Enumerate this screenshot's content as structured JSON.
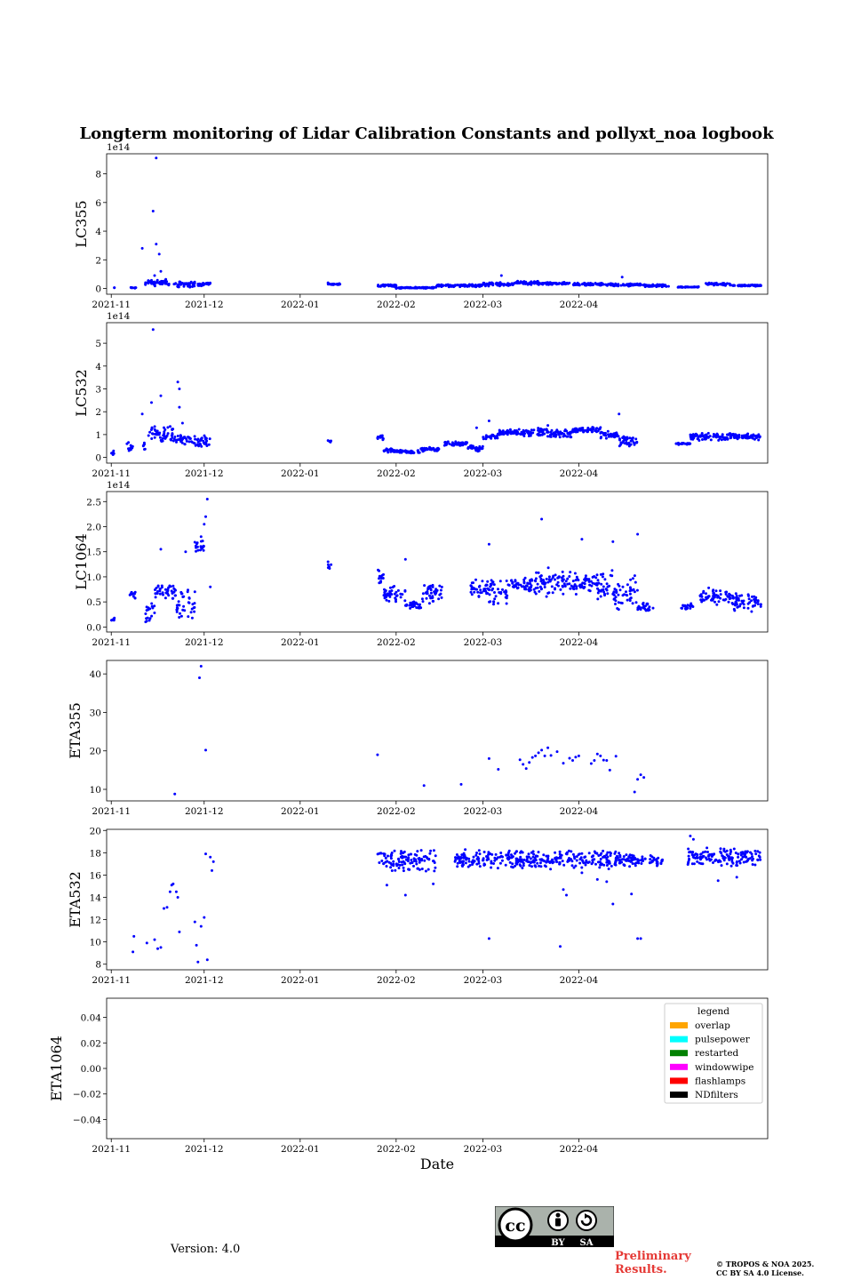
{
  "page": {
    "title": "Longterm monitoring of Lidar Calibration Constants and pollyxt_noa logbook",
    "version": "Version: 4.0",
    "preliminary_line1": "Preliminary",
    "preliminary_line2": "Results.",
    "copyright_line1": "© TROPOS & NOA 2025.",
    "copyright_line2": "CC BY SA 4.0 License.",
    "license_badge": {
      "cc": "cc",
      "by": "BY",
      "sa": "SA"
    }
  },
  "chart_data": [
    {
      "type": "scatter",
      "ylabel": "LC355",
      "xlabel": "",
      "offset_text": "1e14",
      "x_ticks": [
        "2021-11",
        "2021-12",
        "2022-01",
        "2022-02",
        "2022-03",
        "2022-04"
      ],
      "ylim": [
        -0.4,
        9.4
      ],
      "y_ticks": [
        0,
        2,
        4,
        6,
        8
      ],
      "y_tick_labels": [
        "0",
        "2",
        "4",
        "6",
        "8"
      ],
      "color": "#0000ff",
      "segments": [
        [
          1,
          1,
          0.05,
          0.02
        ],
        [
          6,
          8,
          0.05,
          0.04
        ],
        [
          11,
          19,
          0.4,
          0.3
        ],
        [
          20,
          27,
          0.3,
          0.25
        ],
        [
          28,
          32,
          0.3,
          0.15
        ],
        [
          70,
          74,
          0.3,
          0.05
        ],
        [
          86,
          92,
          0.2,
          0.1
        ],
        [
          92,
          105,
          0.05,
          0.05
        ],
        [
          105,
          120,
          0.2,
          0.1
        ],
        [
          120,
          130,
          0.3,
          0.15
        ],
        [
          130,
          138,
          0.4,
          0.15
        ],
        [
          138,
          148,
          0.35,
          0.1
        ],
        [
          149,
          162,
          0.3,
          0.1
        ],
        [
          162,
          172,
          0.25,
          0.1
        ],
        [
          172,
          180,
          0.2,
          0.1
        ],
        [
          183,
          190,
          0.1,
          0.03
        ],
        [
          192,
          200,
          0.3,
          0.1
        ],
        [
          200,
          210,
          0.2,
          0.06
        ]
      ],
      "points": [
        [
          14.5,
          9.1
        ],
        [
          13.5,
          5.4
        ],
        [
          14.5,
          3.1
        ],
        [
          10,
          2.8
        ],
        [
          15.5,
          2.4
        ],
        [
          16,
          1.2
        ],
        [
          14,
          0.9
        ],
        [
          126,
          0.9
        ],
        [
          70,
          0.4
        ],
        [
          165,
          0.8
        ]
      ]
    },
    {
      "type": "scatter",
      "ylabel": "LC532",
      "xlabel": "",
      "offset_text": "1e14",
      "x_ticks": [
        "2021-11",
        "2021-12",
        "2022-01",
        "2022-02",
        "2022-03",
        "2022-04"
      ],
      "ylim": [
        -0.25,
        5.9
      ],
      "y_ticks": [
        0,
        1,
        2,
        3,
        4,
        5
      ],
      "y_tick_labels": [
        "0",
        "1",
        "2",
        "3",
        "4",
        "5"
      ],
      "color": "#0000ff",
      "segments": [
        [
          0,
          1,
          0.2,
          0.1
        ],
        [
          5,
          7,
          0.4,
          0.3
        ],
        [
          10,
          11,
          0.5,
          0.3
        ],
        [
          12,
          20,
          1.0,
          0.4
        ],
        [
          20,
          26,
          0.8,
          0.25
        ],
        [
          26,
          32,
          0.7,
          0.3
        ],
        [
          70,
          71,
          0.7,
          0.05
        ],
        [
          86,
          88,
          0.9,
          0.15
        ],
        [
          88,
          92,
          0.3,
          0.1
        ],
        [
          92,
          100,
          0.25,
          0.08
        ],
        [
          100,
          106,
          0.35,
          0.1
        ],
        [
          107,
          115,
          0.6,
          0.1
        ],
        [
          115,
          120,
          0.4,
          0.15
        ],
        [
          120,
          125,
          0.9,
          0.15
        ],
        [
          125,
          133,
          1.1,
          0.15
        ],
        [
          133,
          141,
          1.1,
          0.2
        ],
        [
          141,
          149,
          1.05,
          0.2
        ],
        [
          149,
          158,
          1.2,
          0.15
        ],
        [
          158,
          164,
          1.0,
          0.2
        ],
        [
          164,
          170,
          0.7,
          0.25
        ],
        [
          182,
          187,
          0.6,
          0.05
        ],
        [
          187,
          200,
          0.9,
          0.2
        ],
        [
          200,
          210,
          0.9,
          0.15
        ]
      ],
      "points": [
        [
          13.5,
          5.6
        ],
        [
          16,
          2.7
        ],
        [
          21.5,
          3.3
        ],
        [
          22,
          3.0
        ],
        [
          13,
          2.4
        ],
        [
          22,
          2.2
        ],
        [
          23,
          1.5
        ],
        [
          10,
          1.9
        ],
        [
          122,
          1.6
        ],
        [
          164,
          1.9
        ],
        [
          118,
          1.3
        ],
        [
          141,
          1.4
        ]
      ]
    },
    {
      "type": "scatter",
      "ylabel": "LC1064",
      "xlabel": "",
      "offset_text": "1e14",
      "x_ticks": [
        "2021-11",
        "2021-12",
        "2022-01",
        "2022-02",
        "2022-03",
        "2022-04"
      ],
      "ylim": [
        -0.1,
        2.7
      ],
      "y_ticks": [
        0,
        0.5,
        1,
        1.5,
        2,
        2.5
      ],
      "y_tick_labels": [
        "0.0",
        "0.5",
        "1.0",
        "1.5",
        "2.0",
        "2.5"
      ],
      "color": "#0000ff",
      "segments": [
        [
          0,
          1,
          0.15,
          0.05
        ],
        [
          6,
          8,
          0.65,
          0.1
        ],
        [
          11,
          14,
          0.3,
          0.25
        ],
        [
          14,
          21,
          0.7,
          0.2
        ],
        [
          21,
          27,
          0.45,
          0.4
        ],
        [
          27,
          30,
          1.6,
          0.15
        ],
        [
          70,
          71,
          1.2,
          0.1
        ],
        [
          86,
          88,
          1.0,
          0.15
        ],
        [
          88,
          95,
          0.65,
          0.2
        ],
        [
          95,
          100,
          0.45,
          0.1
        ],
        [
          100,
          107,
          0.65,
          0.2
        ],
        [
          116,
          122,
          0.75,
          0.2
        ],
        [
          122,
          128,
          0.7,
          0.3
        ],
        [
          128,
          136,
          0.85,
          0.15
        ],
        [
          136,
          144,
          0.9,
          0.3
        ],
        [
          144,
          151,
          0.85,
          0.3
        ],
        [
          151,
          157,
          0.9,
          0.2
        ],
        [
          157,
          162,
          0.85,
          0.4
        ],
        [
          162,
          167,
          0.6,
          0.3
        ],
        [
          167,
          170,
          0.75,
          0.4
        ],
        [
          170,
          175,
          0.4,
          0.1
        ],
        [
          184,
          188,
          0.4,
          0.07
        ],
        [
          190,
          200,
          0.6,
          0.2
        ],
        [
          200,
          210,
          0.5,
          0.2
        ]
      ],
      "points": [
        [
          31,
          2.55
        ],
        [
          30.5,
          2.2
        ],
        [
          30,
          2.05
        ],
        [
          29,
          1.8
        ],
        [
          139,
          2.15
        ],
        [
          122,
          1.65
        ],
        [
          152,
          1.75
        ],
        [
          170,
          1.85
        ],
        [
          162,
          1.7
        ],
        [
          70,
          1.3
        ],
        [
          95,
          1.35
        ],
        [
          16,
          1.55
        ],
        [
          24,
          1.5
        ],
        [
          32,
          0.8
        ]
      ]
    },
    {
      "type": "scatter",
      "ylabel": "ETA355",
      "xlabel": "",
      "offset_text": "",
      "x_ticks": [
        "2021-11",
        "2021-12",
        "2022-01",
        "2022-02",
        "2022-03",
        "2022-04"
      ],
      "ylim": [
        7,
        43.5
      ],
      "y_ticks": [
        10,
        20,
        30,
        40
      ],
      "y_tick_labels": [
        "10",
        "20",
        "30",
        "40"
      ],
      "color": "#0000ff",
      "segments": [],
      "points": [
        [
          29,
          42
        ],
        [
          28.5,
          39
        ],
        [
          30.5,
          20.2
        ],
        [
          20.5,
          8.8
        ],
        [
          86,
          19
        ],
        [
          101,
          11
        ],
        [
          113,
          11.3
        ],
        [
          122,
          18
        ],
        [
          125,
          15.2
        ],
        [
          132,
          17.7
        ],
        [
          133,
          16.5
        ],
        [
          134,
          15.4
        ],
        [
          135,
          17
        ],
        [
          136,
          18.3
        ],
        [
          137,
          18.7
        ],
        [
          138,
          19.5
        ],
        [
          139,
          20.2
        ],
        [
          140,
          18.7
        ],
        [
          141,
          20.8
        ],
        [
          142,
          18.8
        ],
        [
          144,
          19.8
        ],
        [
          146,
          16.8
        ],
        [
          148,
          18.1
        ],
        [
          149,
          17.5
        ],
        [
          150,
          18.4
        ],
        [
          151,
          18.7
        ],
        [
          155,
          16.7
        ],
        [
          156,
          17.5
        ],
        [
          157,
          19.2
        ],
        [
          158,
          18.7
        ],
        [
          159,
          17.6
        ],
        [
          160,
          17.5
        ],
        [
          161,
          15
        ],
        [
          163,
          18.6
        ],
        [
          169,
          9.3
        ],
        [
          170,
          12.6
        ],
        [
          171,
          13.8
        ],
        [
          172,
          13.1
        ]
      ]
    },
    {
      "type": "scatter",
      "ylabel": "ETA532",
      "xlabel": "",
      "offset_text": "",
      "x_ticks": [
        "2021-11",
        "2021-12",
        "2022-01",
        "2022-02",
        "2022-03",
        "2022-04"
      ],
      "ylim": [
        7.5,
        20.1
      ],
      "y_ticks": [
        8,
        10,
        12,
        14,
        16,
        18,
        20
      ],
      "y_tick_labels": [
        "8",
        "10",
        "12",
        "14",
        "16",
        "18",
        "20"
      ],
      "color": "#0000ff",
      "segments": [
        [
          86,
          105,
          17.2,
          1.2
        ],
        [
          111,
          164,
          17.4,
          0.9
        ],
        [
          164,
          178,
          17.3,
          0.6
        ],
        [
          186,
          210,
          17.6,
          0.9
        ]
      ],
      "points": [
        [
          7,
          9.1
        ],
        [
          7.3,
          10.5
        ],
        [
          11.5,
          9.9
        ],
        [
          14,
          10.2
        ],
        [
          15,
          9.4
        ],
        [
          16,
          9.5
        ],
        [
          17,
          13
        ],
        [
          18,
          13.1
        ],
        [
          19,
          14.5
        ],
        [
          19.5,
          15.1
        ],
        [
          20,
          15.2
        ],
        [
          21,
          14.5
        ],
        [
          21.5,
          14
        ],
        [
          22,
          10.9
        ],
        [
          27,
          11.8
        ],
        [
          27.5,
          9.7
        ],
        [
          28,
          8.2
        ],
        [
          29,
          11.4
        ],
        [
          30,
          12.2
        ],
        [
          30.5,
          17.9
        ],
        [
          31,
          8.4
        ],
        [
          32,
          17.6
        ],
        [
          32.5,
          16.4
        ],
        [
          33,
          17.2
        ],
        [
          122,
          10.3
        ],
        [
          162,
          13.4
        ],
        [
          170,
          10.3
        ],
        [
          171,
          10.3
        ],
        [
          168,
          14.3
        ],
        [
          147,
          14.2
        ],
        [
          146,
          14.7
        ],
        [
          145,
          9.6
        ],
        [
          160,
          15.4
        ],
        [
          187,
          19.5
        ],
        [
          188,
          19.2
        ],
        [
          152,
          16.2
        ],
        [
          157,
          15.6
        ],
        [
          104,
          15.2
        ],
        [
          95,
          14.2
        ],
        [
          89,
          15.1
        ],
        [
          196,
          15.5
        ],
        [
          202,
          15.8
        ]
      ]
    },
    {
      "type": "scatter",
      "ylabel": "ETA1064",
      "xlabel": "Date",
      "offset_text": "",
      "x_ticks": [
        "2021-11",
        "2021-12",
        "2022-01",
        "2022-02",
        "2022-03",
        "2022-04"
      ],
      "ylim": [
        -0.055,
        0.055
      ],
      "y_ticks": [
        -0.04,
        -0.02,
        0,
        0.02,
        0.04
      ],
      "y_tick_labels": [
        "−0.04",
        "−0.02",
        "0.00",
        "0.02",
        "0.04"
      ],
      "color": "#0000ff",
      "segments": [],
      "points": [],
      "legend": {
        "title": "legend",
        "position": "top-right",
        "entries": [
          {
            "label": "overlap",
            "color": "#ffa500"
          },
          {
            "label": "pulsepower",
            "color": "#00ffff"
          },
          {
            "label": "restarted",
            "color": "#008000"
          },
          {
            "label": "windowwipe",
            "color": "#ff00ff"
          },
          {
            "label": "flashlamps",
            "color": "#ff0000"
          },
          {
            "label": "NDfilters",
            "color": "#000000"
          }
        ]
      }
    }
  ]
}
